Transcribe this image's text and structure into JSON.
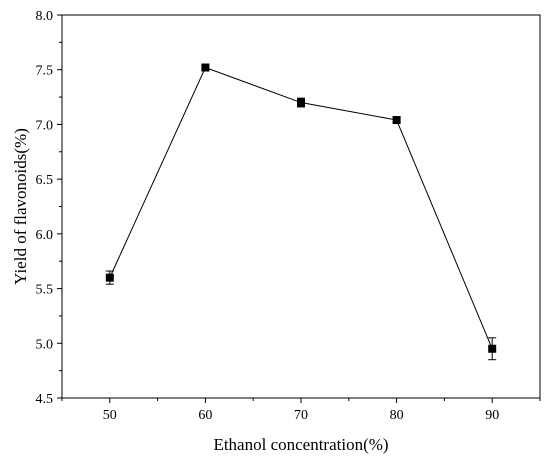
{
  "chart_data": {
    "type": "line",
    "title": "",
    "xlabel": "Ethanol concentration(%)",
    "ylabel": "Yield of flavonoids(%)",
    "x": [
      50,
      60,
      70,
      80,
      90
    ],
    "series": [
      {
        "values": [
          5.6,
          7.52,
          7.2,
          7.04,
          4.95
        ],
        "errors": [
          0.06,
          0.02,
          0.04,
          0.02,
          0.1
        ]
      }
    ],
    "xticks": [
      50,
      60,
      70,
      80,
      90
    ],
    "yticks": [
      4.5,
      5.0,
      5.5,
      6.0,
      6.5,
      7.0,
      7.5,
      8.0
    ],
    "xlim": [
      45,
      95
    ],
    "ylim": [
      4.5,
      8.0
    ],
    "grid": false,
    "marker": "square",
    "color": "#000000"
  }
}
